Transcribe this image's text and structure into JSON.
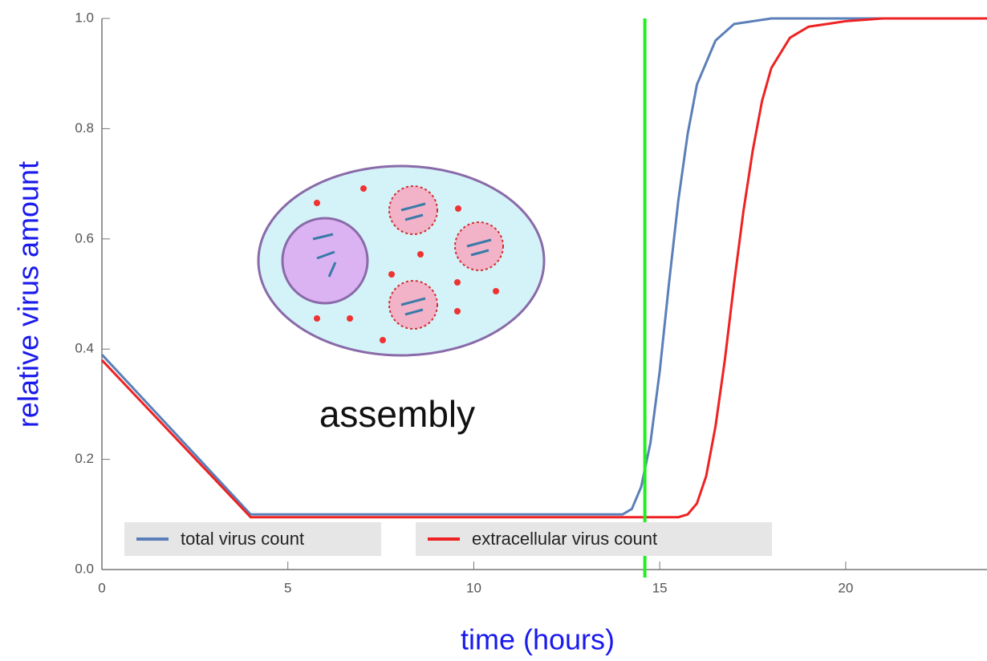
{
  "chart_data": {
    "type": "line",
    "xlabel": "time (hours)",
    "ylabel": "relative virus amount",
    "annotation": "assembly",
    "xlim": [
      0,
      23.8
    ],
    "ylim": [
      0,
      1
    ],
    "xticks": [
      0,
      5,
      10,
      15,
      20
    ],
    "yticks": [
      {
        "value": 0,
        "label": "0.0"
      },
      0.2,
      0.4,
      0.6,
      0.8,
      {
        "value": 1,
        "label": "1.0"
      }
    ],
    "legend": "bottom",
    "vline": {
      "x": 14.6,
      "color": "#22ee22"
    },
    "series": [
      {
        "name": "total virus count",
        "color": "#5b7fb8",
        "x": [
          0,
          4,
          14,
          14.25,
          14.5,
          14.75,
          15,
          15.25,
          15.5,
          15.75,
          16,
          16.5,
          17,
          18,
          23.8
        ],
        "values": [
          0.39,
          0.1,
          0.1,
          0.11,
          0.15,
          0.23,
          0.36,
          0.52,
          0.67,
          0.79,
          0.88,
          0.96,
          0.99,
          1.0,
          1.0
        ]
      },
      {
        "name": "extracellular virus count",
        "color": "#ee2222",
        "x": [
          0,
          4,
          15.5,
          15.75,
          16,
          16.25,
          16.5,
          16.75,
          17,
          17.25,
          17.5,
          17.75,
          18,
          18.5,
          19,
          20,
          21,
          23.8
        ],
        "values": [
          0.38,
          0.095,
          0.095,
          0.1,
          0.12,
          0.17,
          0.26,
          0.38,
          0.52,
          0.65,
          0.76,
          0.85,
          0.91,
          0.965,
          0.985,
          0.995,
          1.0,
          1.0
        ]
      }
    ]
  }
}
